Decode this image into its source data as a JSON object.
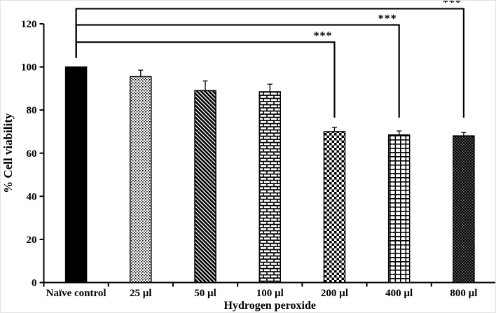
{
  "figure": {
    "background": "#ffffff"
  },
  "chart_data": {
    "type": "bar",
    "title": "",
    "xlabel": "Hydrogen peroxide",
    "ylabel": "% Cell viability",
    "categories": [
      "Naïve control",
      "25 µl",
      "50 µl",
      "100 µl",
      "200 µl",
      "400 µl",
      "800 µl"
    ],
    "values": [
      100,
      95.5,
      89,
      88.5,
      70,
      68.5,
      68
    ],
    "errors_plus": [
      0,
      3,
      4.5,
      3.5,
      2,
      1.8,
      1.6
    ],
    "bar_patterns": [
      "solid-black",
      "light-dots",
      "diagonal-stripes",
      "bricks",
      "checkerboard",
      "grid",
      "dark-dots"
    ],
    "ylim": [
      0,
      120
    ],
    "yticks": [
      0,
      20,
      40,
      60,
      80,
      100,
      120
    ],
    "ytick_labels": [
      "0",
      "20",
      "40",
      "60",
      "80",
      "100",
      "120"
    ],
    "grid": "off",
    "legend": "none",
    "significance": [
      {
        "compare_from": "Naïve control",
        "compare_to": "200 µl",
        "label": "***",
        "level": 111.5
      },
      {
        "compare_from": "Naïve control",
        "compare_to": "400 µl",
        "label": "***",
        "level": 119.5
      },
      {
        "compare_from": "Naïve control",
        "compare_to": "800 µl",
        "label": "***",
        "level": 127
      }
    ],
    "colors": {
      "bar_outline": "#000000",
      "axis": "#000000",
      "text": "#000000",
      "pattern_foreground": "#000000",
      "pattern_background": "#ffffff"
    }
  }
}
